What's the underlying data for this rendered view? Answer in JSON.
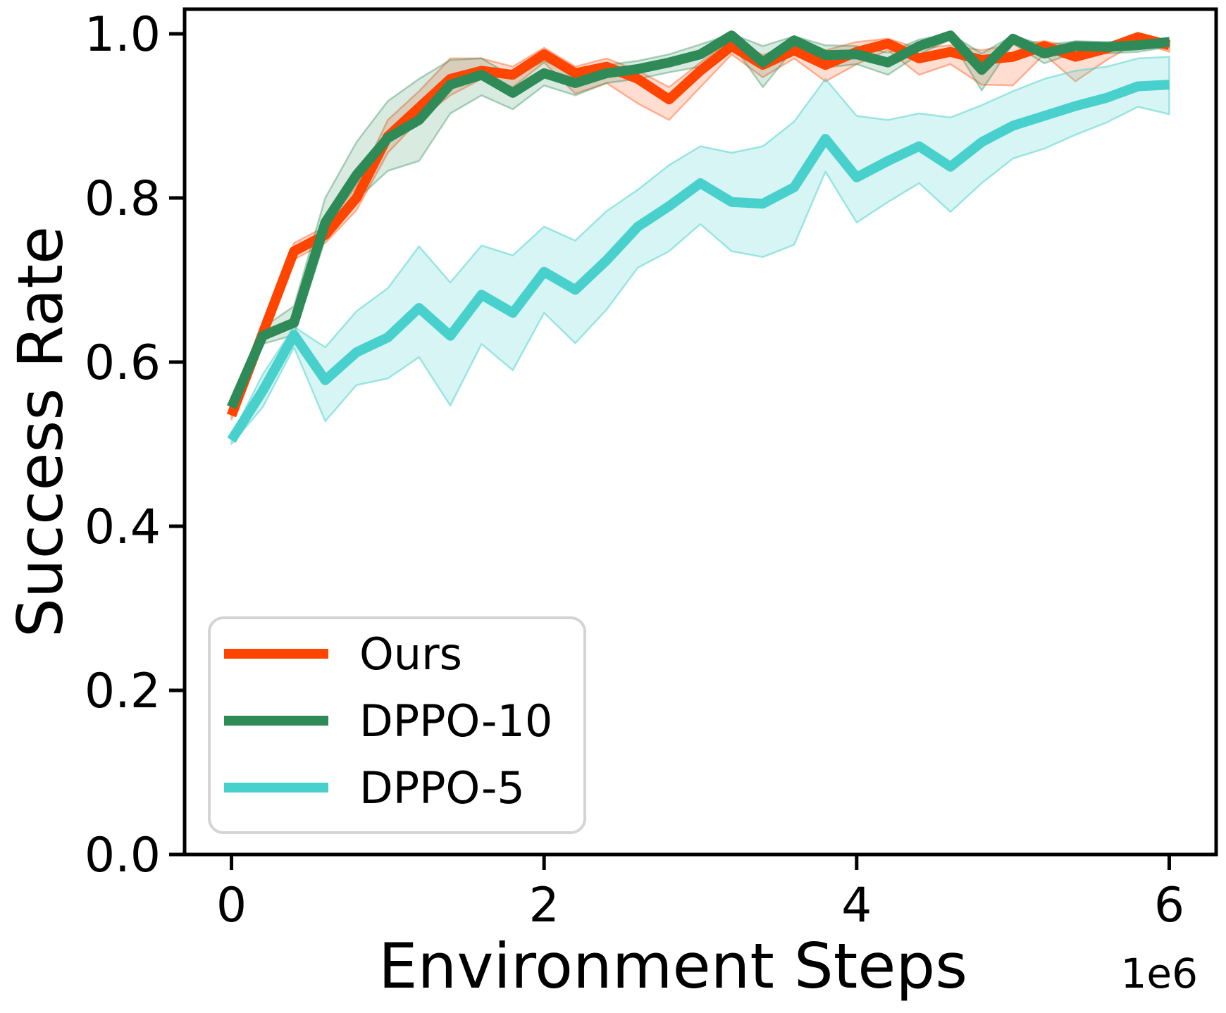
{
  "figure": {
    "background": "#FFFFFF",
    "spine_color": "#000000"
  },
  "chart_data": {
    "type": "line",
    "title": "",
    "xlabel": "Environment Steps",
    "ylabel": "Success Rate",
    "x_offset_label": "1e6",
    "x_scale": 1000000,
    "xlim": [
      -0.3,
      6.3
    ],
    "ylim": [
      0,
      1.03
    ],
    "xticks": [
      0,
      2,
      4,
      6
    ],
    "xticklabels": [
      "0",
      "2",
      "4",
      "6"
    ],
    "yticks": [
      0.0,
      0.2,
      0.4,
      0.6,
      0.8,
      1.0
    ],
    "yticklabels": [
      "0.0",
      "0.2",
      "0.4",
      "0.6",
      "0.8",
      "1.0"
    ],
    "grid": false,
    "legend_position": "lower left",
    "legend_border_color": "#D4D4D4",
    "legend_background": "#FFFFFF",
    "x": [
      0.0,
      0.2,
      0.4,
      0.6,
      0.8,
      1.0,
      1.2,
      1.4,
      1.6,
      1.8,
      2.0,
      2.2,
      2.4,
      2.6,
      2.8,
      3.0,
      3.2,
      3.4,
      3.6,
      3.8,
      4.0,
      4.2,
      4.4,
      4.6,
      4.8,
      5.0,
      5.2,
      5.4,
      5.6,
      5.8,
      6.0
    ],
    "series": [
      {
        "name": "Ours",
        "color": "#FF4500",
        "band_alpha": 0.18,
        "band_edge_alpha": 0.38,
        "values": [
          0.535,
          0.635,
          0.735,
          0.755,
          0.8,
          0.875,
          0.91,
          0.945,
          0.955,
          0.95,
          0.975,
          0.952,
          0.96,
          0.945,
          0.92,
          0.955,
          0.985,
          0.962,
          0.98,
          0.962,
          0.978,
          0.988,
          0.97,
          0.978,
          0.968,
          0.972,
          0.985,
          0.972,
          0.982,
          0.996,
          0.986
        ],
        "band_upper": [
          0.54,
          0.645,
          0.745,
          0.765,
          0.815,
          0.895,
          0.93,
          0.97,
          0.97,
          0.96,
          0.983,
          0.96,
          0.97,
          0.955,
          0.935,
          0.965,
          0.993,
          0.974,
          0.988,
          0.98,
          0.99,
          0.994,
          0.982,
          0.986,
          0.98,
          0.987,
          0.991,
          0.984,
          0.988,
          1.0,
          0.992
        ],
        "band_lower": [
          0.53,
          0.625,
          0.725,
          0.745,
          0.785,
          0.855,
          0.895,
          0.925,
          0.945,
          0.935,
          0.965,
          0.927,
          0.94,
          0.915,
          0.895,
          0.935,
          0.975,
          0.947,
          0.97,
          0.942,
          0.963,
          0.98,
          0.95,
          0.963,
          0.938,
          0.937,
          0.975,
          0.942,
          0.968,
          0.99,
          0.978
        ]
      },
      {
        "name": "DPPO-10",
        "color": "#2E8B57",
        "band_alpha": 0.18,
        "band_edge_alpha": 0.38,
        "values": [
          0.545,
          0.632,
          0.648,
          0.77,
          0.828,
          0.873,
          0.895,
          0.938,
          0.95,
          0.928,
          0.952,
          0.94,
          0.952,
          0.957,
          0.965,
          0.975,
          0.998,
          0.965,
          0.992,
          0.974,
          0.975,
          0.965,
          0.985,
          0.998,
          0.956,
          0.994,
          0.976,
          0.985,
          0.984,
          0.986,
          0.99
        ],
        "band_upper": [
          0.55,
          0.642,
          0.668,
          0.8,
          0.868,
          0.918,
          0.945,
          0.968,
          0.97,
          0.948,
          0.967,
          0.952,
          0.962,
          0.967,
          0.975,
          0.987,
          1.0,
          0.985,
          0.997,
          0.986,
          0.985,
          0.977,
          0.993,
          1.0,
          0.976,
          0.998,
          0.986,
          0.991,
          0.99,
          0.992,
          0.995
        ],
        "band_lower": [
          0.54,
          0.622,
          0.633,
          0.75,
          0.798,
          0.833,
          0.845,
          0.903,
          0.925,
          0.908,
          0.937,
          0.925,
          0.94,
          0.945,
          0.953,
          0.96,
          0.988,
          0.935,
          0.982,
          0.959,
          0.963,
          0.95,
          0.975,
          0.993,
          0.931,
          0.988,
          0.964,
          0.977,
          0.976,
          0.978,
          0.984
        ]
      },
      {
        "name": "DPPO-5",
        "color": "#48D1CC",
        "band_alpha": 0.22,
        "band_edge_alpha": 0.5,
        "values": [
          0.505,
          0.565,
          0.633,
          0.578,
          0.612,
          0.63,
          0.666,
          0.632,
          0.682,
          0.66,
          0.71,
          0.688,
          0.724,
          0.765,
          0.79,
          0.818,
          0.795,
          0.793,
          0.813,
          0.872,
          0.825,
          0.845,
          0.863,
          0.838,
          0.868,
          0.888,
          0.9,
          0.912,
          0.922,
          0.936,
          0.938
        ],
        "band_upper": [
          0.51,
          0.585,
          0.643,
          0.618,
          0.662,
          0.69,
          0.741,
          0.697,
          0.742,
          0.73,
          0.765,
          0.748,
          0.784,
          0.81,
          0.84,
          0.863,
          0.855,
          0.863,
          0.893,
          0.945,
          0.9,
          0.895,
          0.903,
          0.898,
          0.913,
          0.93,
          0.945,
          0.955,
          0.96,
          0.97,
          0.972
        ],
        "band_lower": [
          0.5,
          0.545,
          0.618,
          0.528,
          0.572,
          0.58,
          0.606,
          0.547,
          0.622,
          0.59,
          0.66,
          0.623,
          0.664,
          0.715,
          0.735,
          0.768,
          0.735,
          0.728,
          0.743,
          0.832,
          0.77,
          0.795,
          0.818,
          0.783,
          0.818,
          0.848,
          0.86,
          0.877,
          0.892,
          0.911,
          0.902
        ]
      }
    ]
  }
}
